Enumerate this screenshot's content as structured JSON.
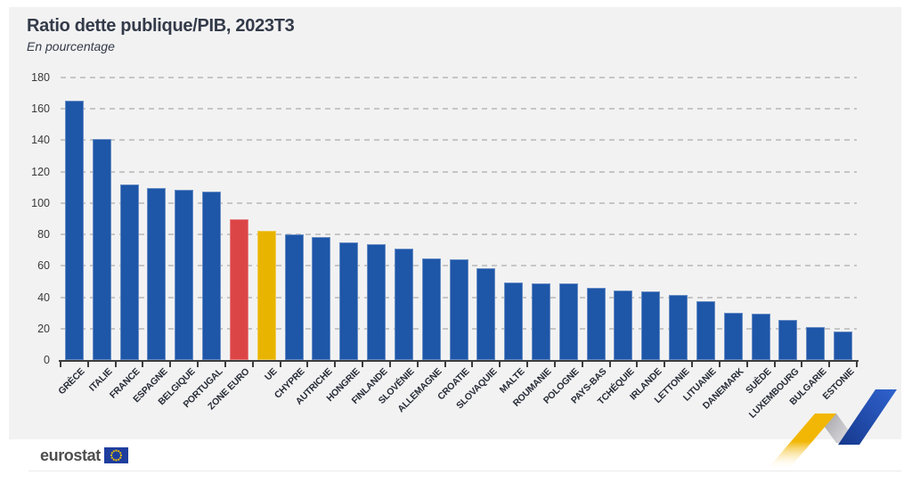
{
  "header": {
    "title": "Ratio dette publique/PIB, 2023T3",
    "subtitle": "En pourcentage"
  },
  "chart_data": {
    "type": "bar",
    "title": "Ratio dette publique/PIB, 2023T3",
    "subtitle": "En pourcentage",
    "unit": "% du PIB",
    "categories": [
      "GRÈCE",
      "ITALIE",
      "FRANCE",
      "ESPAGNE",
      "BELGIQUE",
      "PORTUGAL",
      "ZONE EURO",
      "UE",
      "CHYPRE",
      "AUTRICHE",
      "HONGRIE",
      "FINLANDE",
      "SLOVÉNIE",
      "ALLEMAGNE",
      "CROATIE",
      "SLOVAQUIE",
      "MALTE",
      "ROUMANIE",
      "POLOGNE",
      "PAYS-BAS",
      "TCHÉQUIE",
      "IRLANDE",
      "LETTONIE",
      "LITUANIE",
      "DANEMARK",
      "SUÈDE",
      "LUXEMBOURG",
      "BULGARIE",
      "ESTONIE"
    ],
    "values": [
      165.5,
      140.6,
      111.9,
      109.8,
      108.2,
      107.5,
      89.9,
      82.6,
      79.8,
      78.5,
      75.0,
      73.8,
      71.1,
      64.8,
      64.0,
      58.5,
      49.4,
      49.0,
      48.7,
      46.2,
      44.5,
      43.5,
      41.7,
      37.5,
      30.1,
      29.6,
      25.8,
      20.9,
      18.0
    ],
    "bar_colors": {
      "default": "#1e56a8",
      "ZONE EURO": "#dc4546",
      "UE": "#e9b400"
    },
    "xlabel": "",
    "ylabel": "",
    "ylim": [
      0,
      180
    ],
    "ytick_step": 20,
    "grid": "horizontal-dashed",
    "legend": "none"
  },
  "footer": {
    "logo_text": "eurostat",
    "flag_blue": "#1e3e9e",
    "flag_star_yellow": "#f4c300"
  },
  "decoration": {
    "ribbon_yellow": "#f2b705",
    "ribbon_yellow_fade": "#ffffff",
    "ribbon_gray_dark": "#97979d",
    "ribbon_gray_light": "#e9e9ec",
    "ribbon_blue_dark": "#16388c",
    "ribbon_blue_light": "#2f63cf"
  }
}
